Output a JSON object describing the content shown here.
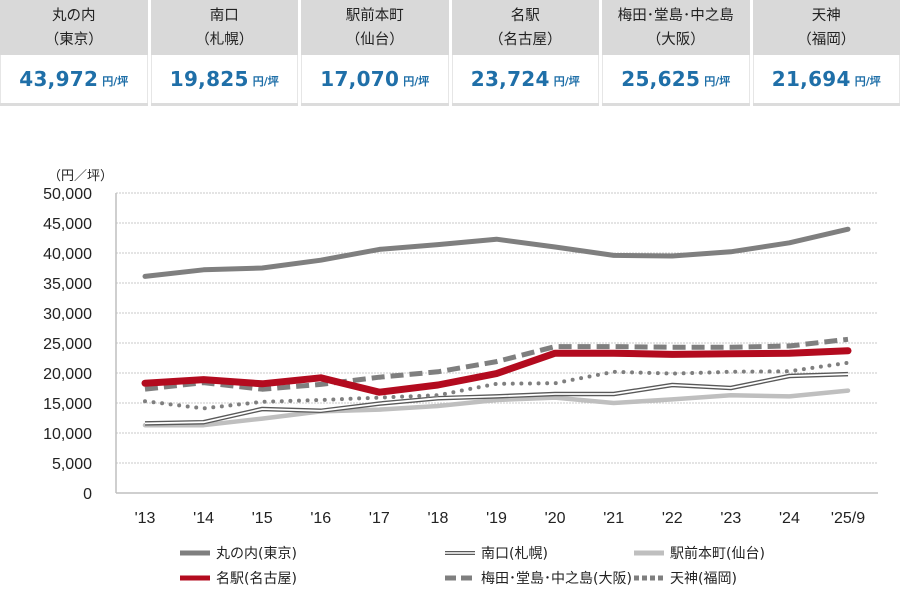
{
  "summary": [
    {
      "area": "丸の内",
      "city": "（東京）",
      "value": "43,972",
      "unit": "円/坪"
    },
    {
      "area": "南口",
      "city": "（札幌）",
      "value": "19,825",
      "unit": "円/坪"
    },
    {
      "area": "駅前本町",
      "city": "（仙台）",
      "value": "17,070",
      "unit": "円/坪"
    },
    {
      "area": "名駅",
      "city": "（名古屋）",
      "value": "23,724",
      "unit": "円/坪"
    },
    {
      "area": "梅田･堂島･中之島",
      "city": "（大阪）",
      "value": "25,625",
      "unit": "円/坪"
    },
    {
      "area": "天神",
      "city": "（福岡）",
      "value": "21,694",
      "unit": "円/坪"
    }
  ],
  "chart_data": {
    "type": "line",
    "title": "",
    "xlabel": "",
    "ylabel": "（円／坪）",
    "ylim": [
      0,
      50000
    ],
    "yticks": [
      0,
      5000,
      10000,
      15000,
      20000,
      25000,
      30000,
      35000,
      40000,
      45000,
      50000
    ],
    "ytick_labels": [
      "0",
      "5,000",
      "10,000",
      "15,000",
      "20,000",
      "25,000",
      "30,000",
      "35,000",
      "40,000",
      "45,000",
      "50,000"
    ],
    "grid": "horizontal dotted",
    "legend_position": "bottom",
    "categories": [
      "'13",
      "'14",
      "'15",
      "'16",
      "'17",
      "'18",
      "'19",
      "'20",
      "'21",
      "'22",
      "'23",
      "'24",
      "'25/9"
    ],
    "series": [
      {
        "name": "丸の内(東京)",
        "color": "#7f7f7f",
        "style": "thick-solid",
        "values": [
          36100,
          37200,
          37500,
          38800,
          40600,
          41400,
          42300,
          41000,
          39600,
          39500,
          40200,
          41700,
          43972
        ]
      },
      {
        "name": "南口(札幌)",
        "color": "#595959",
        "style": "double",
        "values": [
          11600,
          11800,
          14000,
          13700,
          14900,
          15800,
          16100,
          16500,
          16500,
          18000,
          17500,
          19500,
          19825
        ]
      },
      {
        "name": "駅前本町(仙台)",
        "color": "#bfbfbf",
        "style": "solid-light",
        "values": [
          11300,
          11300,
          12400,
          13600,
          13900,
          14500,
          15500,
          15900,
          15000,
          15600,
          16300,
          16100,
          17070
        ]
      },
      {
        "name": "名駅(名古屋)",
        "color": "#b30b1f",
        "style": "thick-solid",
        "values": [
          18300,
          18900,
          18200,
          19200,
          16800,
          18000,
          19900,
          23300,
          23300,
          23100,
          23200,
          23300,
          23724
        ]
      },
      {
        "name": "梅田･堂島･中之島(大阪)",
        "color": "#7f7f7f",
        "style": "dashed",
        "values": [
          17300,
          18400,
          17300,
          18100,
          19300,
          20200,
          21900,
          24400,
          24400,
          24300,
          24300,
          24500,
          25625
        ]
      },
      {
        "name": "天神(福岡)",
        "color": "#7f7f7f",
        "style": "dotted",
        "values": [
          15300,
          14100,
          15200,
          15500,
          15900,
          16300,
          18200,
          18300,
          20200,
          19900,
          20200,
          20300,
          21694
        ]
      }
    ]
  }
}
